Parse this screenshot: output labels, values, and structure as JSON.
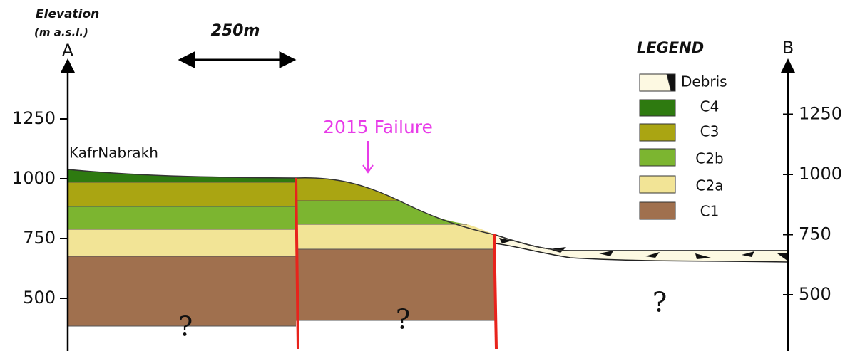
{
  "axes": {
    "left": {
      "title": "Elevation",
      "unit": "(m a.s.l.)",
      "end_label": "A",
      "ticks": [
        1250,
        1000,
        750,
        500
      ]
    },
    "right": {
      "end_label": "B",
      "ticks": [
        1250,
        1000,
        750,
        500
      ]
    }
  },
  "scale_bar": "250m",
  "labels": {
    "village": "KafrNabrakh",
    "failure": "2015 Failure",
    "unknown": [
      "?",
      "?",
      "?"
    ]
  },
  "legend": {
    "title": "LEGEND",
    "items": [
      "Debris",
      "C4",
      "C3",
      "C2b",
      "C2a",
      "C1"
    ]
  }
}
